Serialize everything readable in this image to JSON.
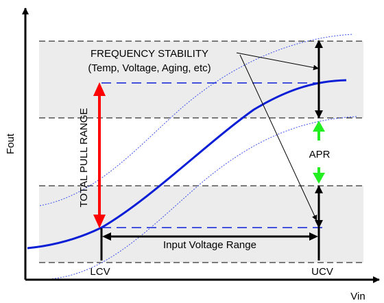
{
  "title_line1": "FREQUENCY STABILITY",
  "title_line2": "(Temp, Voltage, Aging, etc)",
  "vertical_label": "TOTAL PULL RANGE",
  "apr_label": "APR",
  "input_range_label": "Input Voltage Range",
  "lcv_label": "LCV",
  "ucv_label": "UCV",
  "x_axis_label": "Vin",
  "y_axis_label": "Fout",
  "colors": {
    "curve": "#0a1ed6",
    "envelope": "#3b4ff0",
    "pull_range_arrow": "#ff0000",
    "apr_arrow": "#22ee22",
    "band": "#ececec",
    "dash": "#000000"
  }
}
